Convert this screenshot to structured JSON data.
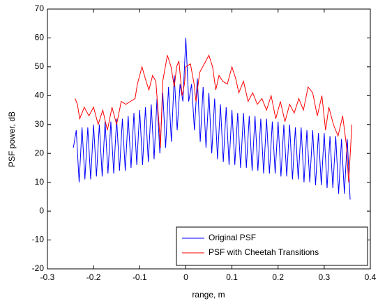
{
  "chart_data": {
    "type": "line",
    "xlabel": "range, m",
    "ylabel": "PSF power, dB",
    "xlim": [
      -0.3,
      0.4
    ],
    "xticks": [
      -0.3,
      -0.2,
      -0.1,
      0,
      0.1,
      0.2,
      0.3,
      0.4
    ],
    "ylim": [
      -20,
      70
    ],
    "yticks": [
      -20,
      -10,
      0,
      10,
      20,
      30,
      40,
      50,
      60,
      70
    ],
    "grid": false,
    "legend": "lower right",
    "series": [
      {
        "name": "Original PSF",
        "color": "#0000ff",
        "x": [
          -0.24375,
          -0.2375,
          -0.23125,
          -0.225,
          -0.21875,
          -0.2125,
          -0.20625,
          -0.2,
          -0.19375,
          -0.1875,
          -0.18125,
          -0.175,
          -0.16875,
          -0.1625,
          -0.15625,
          -0.15,
          -0.14375,
          -0.1375,
          -0.13125,
          -0.125,
          -0.11875,
          -0.1125,
          -0.10625,
          -0.1,
          -0.09375,
          -0.0875,
          -0.08125,
          -0.075,
          -0.06875,
          -0.0625,
          -0.05625,
          -0.05,
          -0.04375,
          -0.0375,
          -0.03125,
          -0.025,
          -0.01875,
          -0.0125,
          -0.00625,
          0,
          0.00625,
          0.0125,
          0.01875,
          0.025,
          0.03125,
          0.0375,
          0.04375,
          0.05,
          0.05625,
          0.0625,
          0.06875,
          0.075,
          0.08125,
          0.0875,
          0.09375,
          0.1,
          0.10625,
          0.1125,
          0.11875,
          0.125,
          0.13125,
          0.1375,
          0.14375,
          0.15,
          0.15625,
          0.1625,
          0.16875,
          0.175,
          0.18125,
          0.1875,
          0.19375,
          0.2,
          0.20625,
          0.2125,
          0.21875,
          0.225,
          0.23125,
          0.2375,
          0.24375,
          0.25,
          0.25625,
          0.2625,
          0.26875,
          0.275,
          0.28125,
          0.2875,
          0.29375,
          0.3,
          0.30625,
          0.3125,
          0.31875,
          0.325,
          0.33125,
          0.3375,
          0.34375,
          0.35,
          0.35625
        ],
        "values": [
          22,
          28,
          10,
          29,
          11,
          29,
          11,
          30,
          12,
          30,
          12,
          31,
          13,
          31,
          13,
          32,
          14,
          32,
          14,
          33,
          15,
          34,
          16,
          35,
          16,
          36,
          17,
          37,
          18,
          39,
          20,
          41,
          22,
          43,
          24,
          47,
          28,
          44,
          38,
          60,
          38,
          44,
          28,
          46,
          24,
          43,
          22,
          41,
          20,
          39,
          18,
          37,
          17,
          36,
          16,
          35,
          16,
          34,
          15,
          34,
          15,
          33,
          14,
          33,
          14,
          32,
          13,
          32,
          13,
          31,
          13,
          31,
          12,
          30,
          12,
          30,
          11,
          29,
          11,
          29,
          10,
          28,
          10,
          28,
          9,
          27,
          9,
          27,
          8,
          26,
          8,
          26,
          6,
          25,
          6,
          25,
          4
        ]
      },
      {
        "name": "PSF with Cheetah Transitions",
        "color": "#ff0000",
        "x": [
          -0.24,
          -0.235,
          -0.23,
          -0.22,
          -0.21,
          -0.2,
          -0.19,
          -0.18,
          -0.17,
          -0.16,
          -0.15,
          -0.14,
          -0.13,
          -0.12,
          -0.11,
          -0.105,
          -0.095,
          -0.088,
          -0.08,
          -0.072,
          -0.065,
          -0.058,
          -0.055,
          -0.05,
          -0.04,
          -0.032,
          -0.025,
          -0.02,
          -0.015,
          -0.008,
          -0.003,
          0,
          0.01,
          0.018,
          0.022,
          0.03,
          0.04,
          0.05,
          0.058,
          0.065,
          0.072,
          0.08,
          0.09,
          0.1,
          0.108,
          0.115,
          0.125,
          0.135,
          0.145,
          0.155,
          0.165,
          0.175,
          0.185,
          0.195,
          0.205,
          0.215,
          0.225,
          0.235,
          0.245,
          0.255,
          0.265,
          0.275,
          0.285,
          0.295,
          0.303,
          0.31,
          0.32,
          0.33,
          0.34,
          0.348,
          0.353,
          0.36
        ],
        "values": [
          39,
          37,
          32,
          36,
          33,
          36,
          30,
          35,
          28,
          36,
          30,
          38,
          37,
          38,
          39,
          44,
          50,
          46,
          42,
          47,
          45,
          30,
          22,
          45,
          54,
          50,
          43,
          50,
          52,
          40,
          44,
          50,
          51,
          44,
          38,
          48,
          51,
          54,
          50,
          42,
          47,
          45,
          44,
          50,
          46,
          41,
          45,
          38,
          41,
          37,
          39,
          35,
          40,
          32,
          38,
          31,
          37,
          34,
          39,
          35,
          43,
          41,
          33,
          40,
          28,
          36,
          30,
          26,
          33,
          23,
          10,
          30
        ]
      }
    ]
  }
}
